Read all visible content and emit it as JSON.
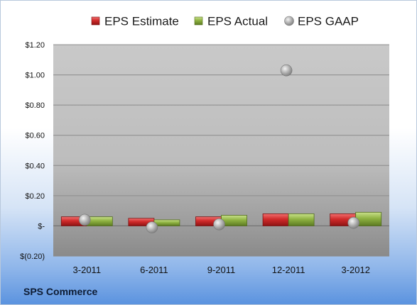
{
  "chart_data": {
    "type": "bar",
    "categories": [
      "3-2011",
      "6-2011",
      "9-2011",
      "12-2011",
      "3-2012"
    ],
    "series": [
      {
        "name": "EPS Estimate",
        "kind": "bar",
        "color": "#c0292b",
        "values": [
          0.06,
          0.05,
          0.06,
          0.08,
          0.08
        ]
      },
      {
        "name": "EPS Actual",
        "kind": "bar",
        "color": "#8cb040",
        "values": [
          0.06,
          0.04,
          0.07,
          0.08,
          0.09
        ]
      },
      {
        "name": "EPS GAAP",
        "kind": "marker",
        "color": "#a8a8a8",
        "values": [
          0.04,
          -0.01,
          0.01,
          1.03,
          0.02
        ]
      }
    ],
    "ylim": [
      -0.2,
      1.2
    ],
    "yticks": [
      -0.2,
      0,
      0.2,
      0.4,
      0.6,
      0.8,
      1.0,
      1.2
    ],
    "ytick_labels": [
      "$(0.20)",
      "$-",
      "$0.20",
      "$0.40",
      "$0.60",
      "$0.80",
      "$1.00",
      "$1.20"
    ],
    "grid": true,
    "legend_position": "top",
    "source_label": "SPS Commerce"
  }
}
